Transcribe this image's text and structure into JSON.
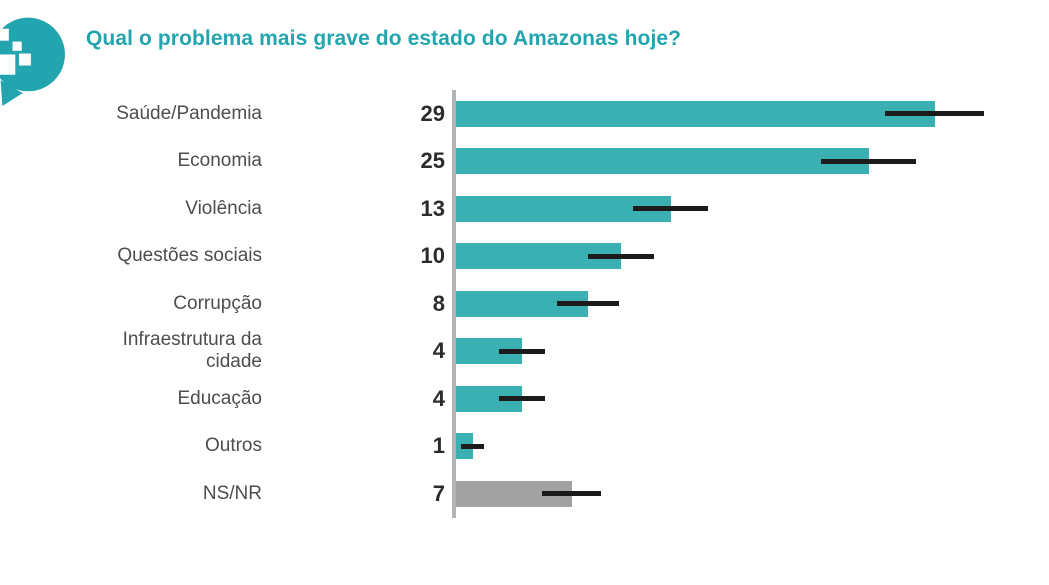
{
  "header": {
    "title": "Qual o problema mais grave do estado do Amazonas hoje?",
    "logo_icon": "speech-bubble-mosaic-icon"
  },
  "colors": {
    "accent_teal": "#3ab0b2",
    "title_teal": "#23a5af",
    "muted_gray": "#a2a2a2",
    "axis_gray": "#b4b4b4",
    "error_bar": "#1b1b1b",
    "label_text": "#4d4d4d",
    "value_text": "#2b2b2b"
  },
  "chart_data": {
    "type": "bar",
    "orientation": "horizontal",
    "title": "Qual o problema mais grave do estado do Amazonas hoje?",
    "categories": [
      "Saúde/Pandemia",
      "Economia",
      "Violência",
      "Questões sociais",
      "Corrupção",
      "Infraestrutura da cidade",
      "Educação",
      "Outros",
      "NS/NR"
    ],
    "values": [
      29,
      25,
      13,
      10,
      8,
      4,
      4,
      1,
      7
    ],
    "value_labels": [
      "29",
      "25",
      "13",
      "10",
      "8",
      "4",
      "4",
      "1",
      "7"
    ],
    "errors": [
      3.0,
      2.9,
      2.3,
      2.0,
      1.9,
      1.4,
      1.4,
      0.7,
      1.8
    ],
    "bar_colors": [
      "#3ab0b2",
      "#3ab0b2",
      "#3ab0b2",
      "#3ab0b2",
      "#3ab0b2",
      "#3ab0b2",
      "#3ab0b2",
      "#3ab0b2",
      "#a2a2a2"
    ],
    "error_bar_color": "#1b1b1b",
    "xlim": [
      0,
      36
    ],
    "grid": false,
    "legend": false,
    "value_labels_shown": true,
    "error_bars": true
  }
}
